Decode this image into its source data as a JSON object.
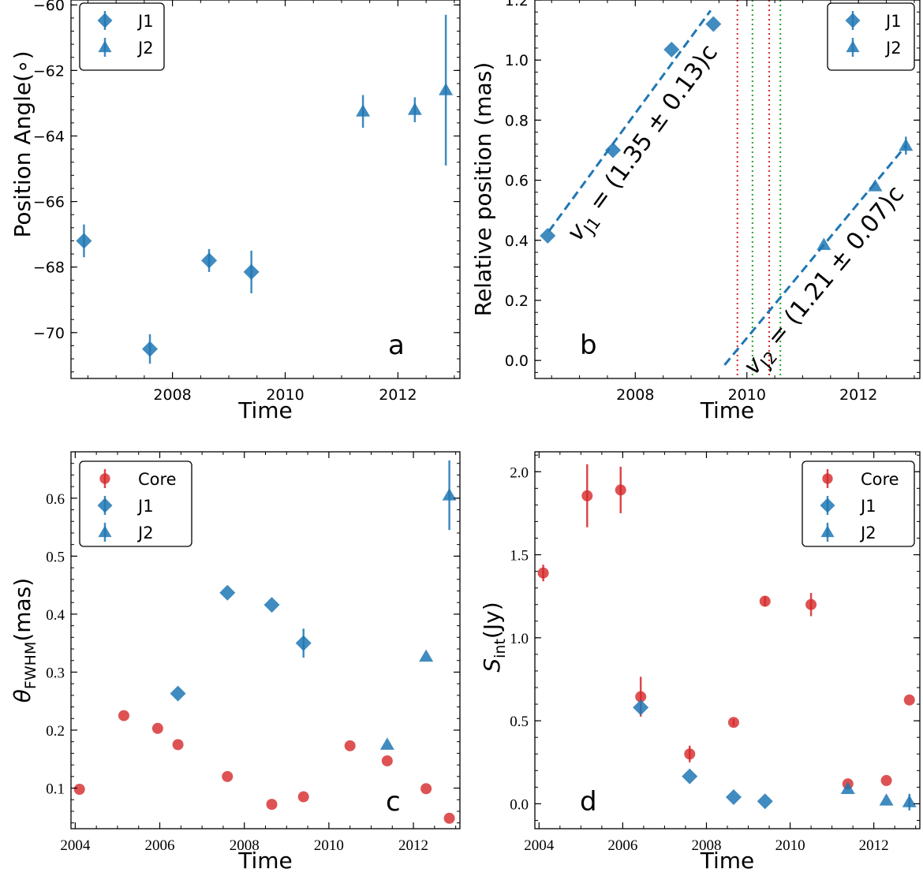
{
  "chart_data": [
    {
      "panel": "a",
      "type": "scatter",
      "panel_letter": "a",
      "xlabel": "Time",
      "ylabel": "Position Angle(∘)",
      "xlim": [
        2006.2,
        2013.1
      ],
      "ylim": [
        -71.4,
        -59.85
      ],
      "xticks": [
        2008,
        2010,
        2012
      ],
      "xtick_labels": [
        "2008",
        "2010",
        "2012"
      ],
      "yticks": [
        -70,
        -68,
        -66,
        -64,
        -62,
        -60
      ],
      "ytick_labels": [
        "−70",
        "−68",
        "−66",
        "−64",
        "−62",
        "−60"
      ],
      "legend": "top-left",
      "series": [
        {
          "name": "J1",
          "marker": "diamond",
          "color": "#1f77b4",
          "points": [
            [
              2006.43,
              -67.2,
              0.5
            ],
            [
              2007.6,
              -70.5,
              0.45
            ],
            [
              2008.65,
              -67.8,
              0.35
            ],
            [
              2009.4,
              -68.15,
              0.65
            ]
          ]
        },
        {
          "name": "J2",
          "marker": "triangle",
          "color": "#1f77b4",
          "points": [
            [
              2011.38,
              -63.25,
              0.5
            ],
            [
              2012.3,
              -63.2,
              0.38
            ],
            [
              2012.85,
              -62.6,
              2.3
            ]
          ]
        }
      ]
    },
    {
      "panel": "b",
      "type": "scatter",
      "panel_letter": "b",
      "xlabel": "Time",
      "ylabel": "Relative position (mas)",
      "xlim": [
        2006.2,
        2013.1
      ],
      "ylim": [
        -0.06,
        1.2
      ],
      "xticks": [
        2008,
        2010,
        2012
      ],
      "xtick_labels": [
        "2008",
        "2010",
        "2012"
      ],
      "yticks": [
        0.0,
        0.2,
        0.4,
        0.6,
        0.8,
        1.0,
        1.2
      ],
      "ytick_labels": [
        "0.0",
        "0.2",
        "0.4",
        "0.6",
        "0.8",
        "1.0",
        "1.2"
      ],
      "legend": "top-right",
      "series": [
        {
          "name": "J1",
          "marker": "diamond",
          "color": "#1f77b4",
          "points": [
            [
              2006.43,
              0.415,
              0.0
            ],
            [
              2007.6,
              0.7,
              0.0
            ],
            [
              2008.65,
              1.035,
              0.0
            ],
            [
              2009.4,
              1.12,
              0.0
            ]
          ]
        },
        {
          "name": "J2",
          "marker": "triangle",
          "color": "#1f77b4",
          "points": [
            [
              2011.38,
              0.385,
              0.0
            ],
            [
              2012.3,
              0.58,
              0.0
            ],
            [
              2012.85,
              0.715,
              0.03
            ]
          ]
        }
      ],
      "fit_lines": [
        {
          "x": [
            2006.45,
            2009.35
          ],
          "y": [
            0.43,
            1.165
          ],
          "label_main": "v",
          "label_sub": "J1",
          "label_rest": " = (1.35 ± 0.13)c"
        },
        {
          "x": [
            2009.6,
            2012.85
          ],
          "y": [
            -0.015,
            0.715
          ],
          "label_main": "v",
          "label_sub": "J2",
          "label_rest": " = (1.21 ± 0.07)c"
        }
      ],
      "vlines": [
        {
          "x": 2009.83,
          "color": "#d62728"
        },
        {
          "x": 2010.4,
          "color": "#d62728"
        },
        {
          "x": 2010.1,
          "color": "#2ca02c"
        },
        {
          "x": 2010.6,
          "color": "#2ca02c"
        }
      ]
    },
    {
      "panel": "c",
      "type": "scatter",
      "panel_letter": "c",
      "xlabel": "Time",
      "ylabel_main": "θ",
      "ylabel_sub": "FWHM",
      "ylabel_rest": "(mas)",
      "xlim": [
        2003.9,
        2013.1
      ],
      "ylim": [
        0.03,
        0.68
      ],
      "xticks": [
        2004,
        2006,
        2008,
        2010,
        2012
      ],
      "xtick_labels": [
        "2004",
        "2006",
        "2008",
        "2010",
        "2012"
      ],
      "yticks": [
        0.1,
        0.2,
        0.3,
        0.4,
        0.5,
        0.6
      ],
      "ytick_labels": [
        "0.1",
        "0.2",
        "0.3",
        "0.4",
        "0.5",
        "0.6"
      ],
      "legend": "top-left",
      "series": [
        {
          "name": "Core",
          "marker": "circle",
          "color": "#d62728",
          "points": [
            [
              2004.1,
              0.098,
              0.0
            ],
            [
              2005.15,
              0.225,
              0.0
            ],
            [
              2005.95,
              0.203,
              0.0
            ],
            [
              2006.43,
              0.175,
              0.0
            ],
            [
              2007.6,
              0.12,
              0.0
            ],
            [
              2008.65,
              0.072,
              0.0
            ],
            [
              2009.4,
              0.085,
              0.0
            ],
            [
              2010.5,
              0.173,
              0.0
            ],
            [
              2011.38,
              0.147,
              0.0
            ],
            [
              2012.3,
              0.099,
              0.0
            ],
            [
              2012.85,
              0.048,
              0.0
            ]
          ]
        },
        {
          "name": "J1",
          "marker": "diamond",
          "color": "#1f77b4",
          "points": [
            [
              2006.43,
              0.263,
              0.0
            ],
            [
              2007.6,
              0.437,
              0.0
            ],
            [
              2008.65,
              0.416,
              0.0
            ],
            [
              2009.4,
              0.35,
              0.025
            ]
          ]
        },
        {
          "name": "J2",
          "marker": "triangle",
          "color": "#1f77b4",
          "points": [
            [
              2011.38,
              0.175,
              0.0
            ],
            [
              2012.3,
              0.327,
              0.0
            ],
            [
              2012.85,
              0.605,
              0.06
            ]
          ]
        }
      ]
    },
    {
      "panel": "d",
      "type": "scatter",
      "panel_letter": "d",
      "xlabel": "Time",
      "ylabel_main": "S",
      "ylabel_sub": "int",
      "ylabel_rest": "(Jy)",
      "xlim": [
        2003.9,
        2013.1
      ],
      "ylim": [
        -0.15,
        2.12
      ],
      "xticks": [
        2004,
        2006,
        2008,
        2010,
        2012
      ],
      "xtick_labels": [
        "2004",
        "2006",
        "2008",
        "2010",
        "2012"
      ],
      "yticks": [
        0.0,
        0.5,
        1.0,
        1.5,
        2.0
      ],
      "ytick_labels": [
        "0.0",
        "0.5",
        "1.0",
        "1.5",
        "2.0"
      ],
      "legend": "top-right",
      "series": [
        {
          "name": "Core",
          "marker": "circle",
          "color": "#d62728",
          "points": [
            [
              2004.1,
              1.39,
              0.05
            ],
            [
              2005.15,
              1.855,
              0.19
            ],
            [
              2005.95,
              1.89,
              0.14
            ],
            [
              2006.43,
              0.645,
              0.12
            ],
            [
              2007.6,
              0.3,
              0.05
            ],
            [
              2008.65,
              0.49,
              0.02
            ],
            [
              2009.4,
              1.22,
              0.03
            ],
            [
              2010.5,
              1.2,
              0.07
            ],
            [
              2011.38,
              0.12,
              0.0
            ],
            [
              2012.3,
              0.14,
              0.0
            ],
            [
              2012.85,
              0.625,
              0.0
            ]
          ]
        },
        {
          "name": "J1",
          "marker": "diamond",
          "color": "#1f77b4",
          "points": [
            [
              2006.43,
              0.58,
              0.0
            ],
            [
              2007.6,
              0.165,
              0.0
            ],
            [
              2008.65,
              0.04,
              0.0
            ],
            [
              2009.4,
              0.015,
              0.0
            ]
          ]
        },
        {
          "name": "J2",
          "marker": "triangle",
          "color": "#1f77b4",
          "points": [
            [
              2011.38,
              0.09,
              0.0
            ],
            [
              2012.3,
              0.02,
              0.0
            ],
            [
              2012.85,
              0.01,
              0.05
            ]
          ]
        }
      ]
    }
  ]
}
